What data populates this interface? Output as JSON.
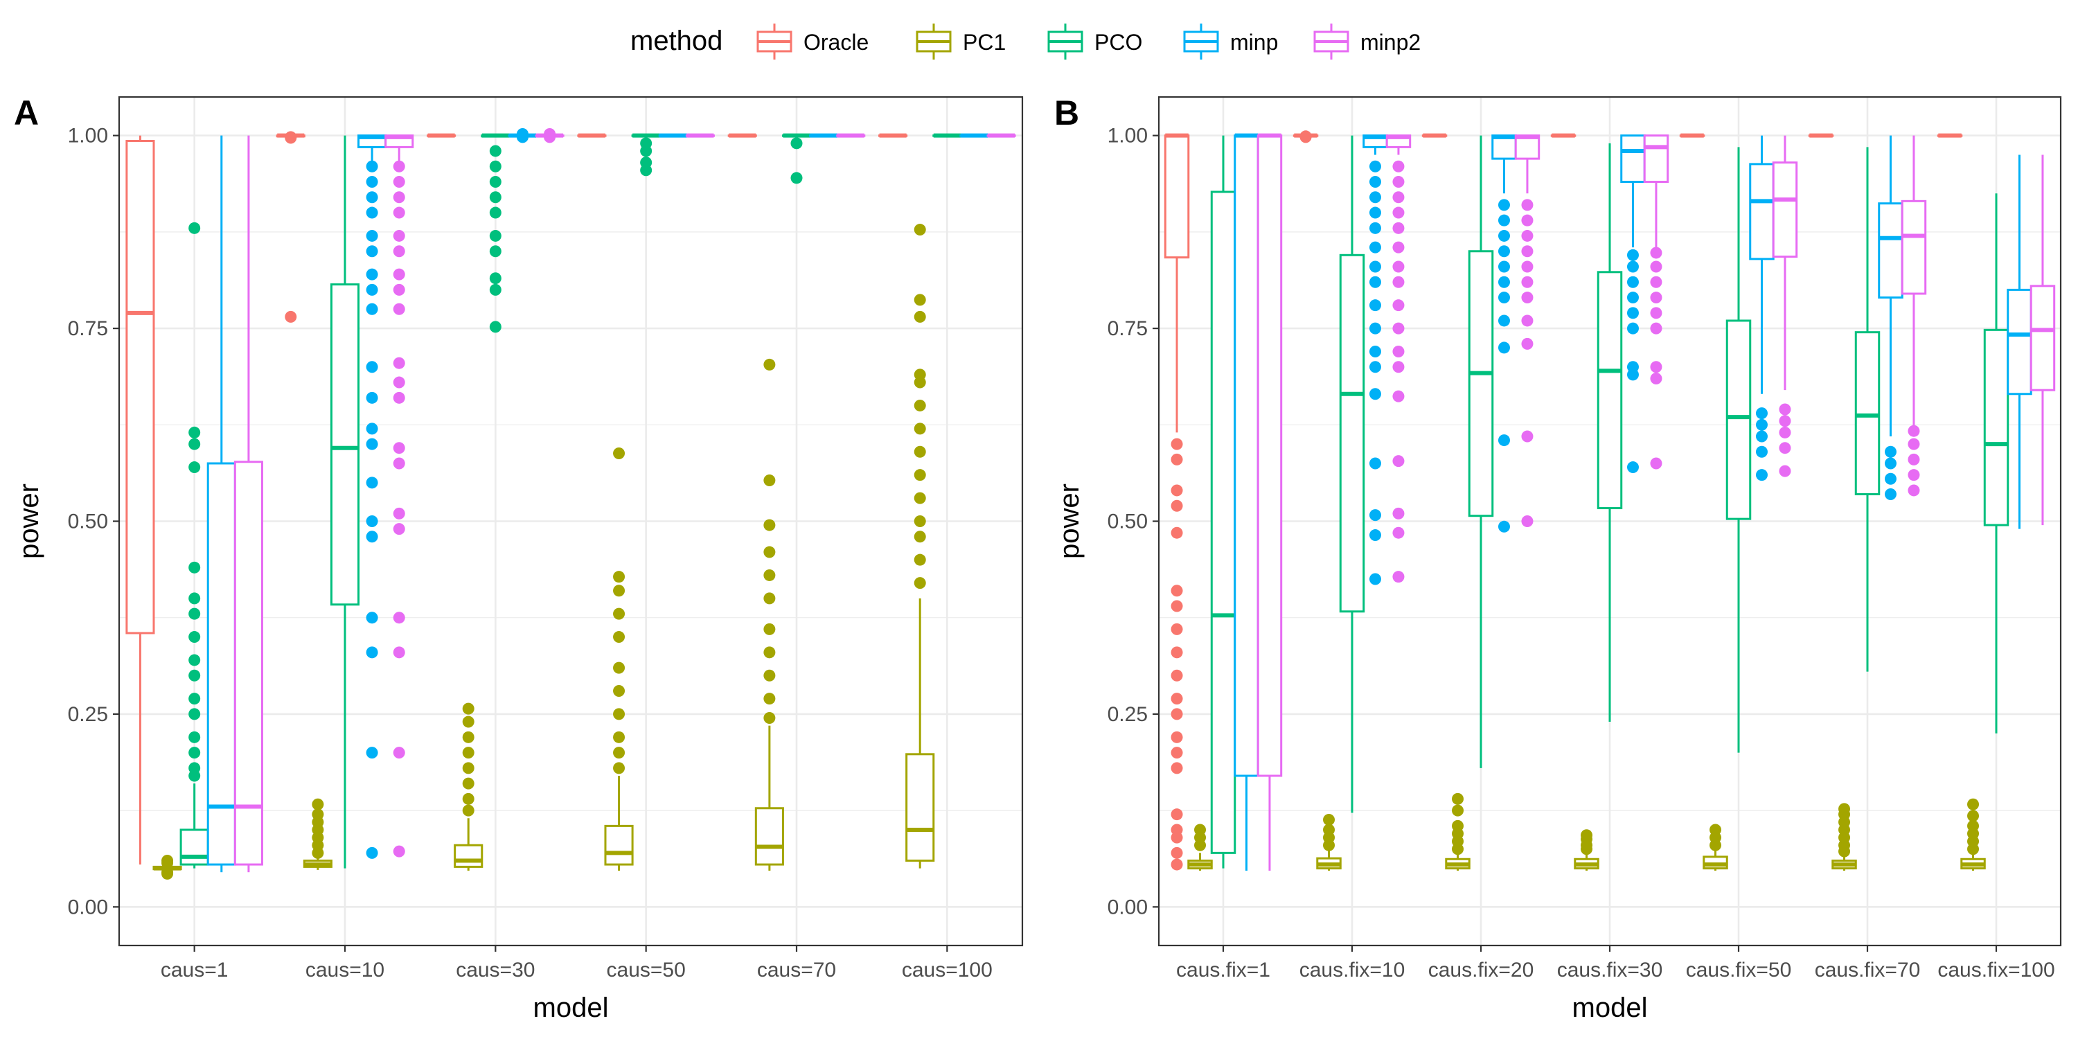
{
  "legend": {
    "title": "method",
    "items": [
      {
        "name": "Oracle",
        "color": "#F8766D"
      },
      {
        "name": "PC1",
        "color": "#A3A500"
      },
      {
        "name": "PCO",
        "color": "#00BF7D"
      },
      {
        "name": "minp",
        "color": "#00B0F6"
      },
      {
        "name": "minp2",
        "color": "#E76BF3"
      }
    ]
  },
  "chart_data": [
    {
      "type": "boxplot",
      "panel": "A",
      "xlabel": "model",
      "ylabel": "power",
      "ylim": [
        -0.05,
        1.05
      ],
      "yticks": [
        "0.00",
        "0.25",
        "0.50",
        "0.75",
        "1.00"
      ],
      "categories": [
        "caus=1",
        "caus=10",
        "caus=30",
        "caus=50",
        "caus=70",
        "caus=100"
      ],
      "methods": [
        "Oracle",
        "PC1",
        "PCO",
        "minp",
        "minp2"
      ],
      "boxes": [
        [
          {
            "q1": 0.355,
            "med": 0.77,
            "q3": 0.993,
            "wlo": 0.055,
            "whi": 1.0,
            "out": []
          },
          {
            "q1": 0.049,
            "med": 0.05,
            "q3": 0.052,
            "wlo": 0.047,
            "whi": 0.055,
            "out": [
              0.043,
              0.045,
              0.057,
              0.06
            ]
          },
          {
            "q1": 0.055,
            "med": 0.065,
            "q3": 0.1,
            "wlo": 0.05,
            "whi": 0.16,
            "out": [
              0.17,
              0.18,
              0.2,
              0.22,
              0.25,
              0.27,
              0.3,
              0.32,
              0.35,
              0.38,
              0.4,
              0.44,
              0.57,
              0.6,
              0.615,
              0.88
            ]
          },
          {
            "q1": 0.055,
            "med": 0.13,
            "q3": 0.575,
            "wlo": 0.045,
            "whi": 1.0,
            "out": []
          },
          {
            "q1": 0.055,
            "med": 0.13,
            "q3": 0.577,
            "wlo": 0.045,
            "whi": 1.0,
            "out": []
          }
        ],
        [
          {
            "q1": 0.999,
            "med": 1.0,
            "q3": 1.0,
            "wlo": 0.998,
            "whi": 1.0,
            "out": [
              0.765,
              0.997,
              0.998
            ]
          },
          {
            "q1": 0.052,
            "med": 0.055,
            "q3": 0.06,
            "wlo": 0.048,
            "whi": 0.065,
            "out": [
              0.07,
              0.08,
              0.09,
              0.1,
              0.11,
              0.12,
              0.133
            ]
          },
          {
            "q1": 0.392,
            "med": 0.595,
            "q3": 0.807,
            "wlo": 0.05,
            "whi": 1.0,
            "out": []
          },
          {
            "q1": 0.985,
            "med": 0.998,
            "q3": 1.0,
            "wlo": 0.965,
            "whi": 1.0,
            "out": [
              0.07,
              0.2,
              0.33,
              0.375,
              0.48,
              0.5,
              0.55,
              0.6,
              0.62,
              0.66,
              0.7,
              0.775,
              0.8,
              0.82,
              0.85,
              0.87,
              0.9,
              0.92,
              0.94,
              0.96
            ]
          },
          {
            "q1": 0.985,
            "med": 0.998,
            "q3": 1.0,
            "wlo": 0.965,
            "whi": 1.0,
            "out": [
              0.072,
              0.2,
              0.33,
              0.375,
              0.49,
              0.51,
              0.575,
              0.595,
              0.66,
              0.68,
              0.705,
              0.775,
              0.8,
              0.82,
              0.85,
              0.87,
              0.9,
              0.92,
              0.94,
              0.96
            ]
          }
        ],
        [
          {
            "q1": 1.0,
            "med": 1.0,
            "q3": 1.0,
            "wlo": 1.0,
            "whi": 1.0,
            "out": []
          },
          {
            "q1": 0.052,
            "med": 0.06,
            "q3": 0.08,
            "wlo": 0.047,
            "whi": 0.115,
            "out": [
              0.125,
              0.14,
              0.16,
              0.18,
              0.2,
              0.22,
              0.24,
              0.257
            ]
          },
          {
            "q1": 0.999,
            "med": 1.0,
            "q3": 1.0,
            "wlo": 0.998,
            "whi": 1.0,
            "out": [
              0.752,
              0.8,
              0.815,
              0.85,
              0.87,
              0.9,
              0.92,
              0.94,
              0.96,
              0.98
            ]
          },
          {
            "q1": 1.0,
            "med": 1.0,
            "q3": 1.0,
            "wlo": 1.0,
            "whi": 1.0,
            "out": [
              0.998,
              1.002
            ]
          },
          {
            "q1": 1.0,
            "med": 1.0,
            "q3": 1.0,
            "wlo": 1.0,
            "whi": 1.0,
            "out": [
              0.998,
              1.002
            ]
          }
        ],
        [
          {
            "q1": 1.0,
            "med": 1.0,
            "q3": 1.0,
            "wlo": 1.0,
            "whi": 1.0,
            "out": []
          },
          {
            "q1": 0.055,
            "med": 0.07,
            "q3": 0.105,
            "wlo": 0.047,
            "whi": 0.17,
            "out": [
              0.18,
              0.2,
              0.22,
              0.25,
              0.28,
              0.31,
              0.35,
              0.38,
              0.41,
              0.428,
              0.588
            ]
          },
          {
            "q1": 1.0,
            "med": 1.0,
            "q3": 1.0,
            "wlo": 0.999,
            "whi": 1.0,
            "out": [
              0.955,
              0.965,
              0.98,
              0.99
            ]
          },
          {
            "q1": 1.0,
            "med": 1.0,
            "q3": 1.0,
            "wlo": 1.0,
            "whi": 1.0,
            "out": []
          },
          {
            "q1": 1.0,
            "med": 1.0,
            "q3": 1.0,
            "wlo": 1.0,
            "whi": 1.0,
            "out": []
          }
        ],
        [
          {
            "q1": 1.0,
            "med": 1.0,
            "q3": 1.0,
            "wlo": 1.0,
            "whi": 1.0,
            "out": []
          },
          {
            "q1": 0.055,
            "med": 0.078,
            "q3": 0.128,
            "wlo": 0.047,
            "whi": 0.235,
            "out": [
              0.245,
              0.27,
              0.3,
              0.33,
              0.36,
              0.4,
              0.43,
              0.46,
              0.495,
              0.553,
              0.703
            ]
          },
          {
            "q1": 1.0,
            "med": 1.0,
            "q3": 1.0,
            "wlo": 0.999,
            "whi": 1.0,
            "out": [
              0.945,
              0.99
            ]
          },
          {
            "q1": 1.0,
            "med": 1.0,
            "q3": 1.0,
            "wlo": 1.0,
            "whi": 1.0,
            "out": []
          },
          {
            "q1": 1.0,
            "med": 1.0,
            "q3": 1.0,
            "wlo": 1.0,
            "whi": 1.0,
            "out": []
          }
        ],
        [
          {
            "q1": 1.0,
            "med": 1.0,
            "q3": 1.0,
            "wlo": 1.0,
            "whi": 1.0,
            "out": []
          },
          {
            "q1": 0.06,
            "med": 0.1,
            "q3": 0.198,
            "wlo": 0.05,
            "whi": 0.4,
            "out": [
              0.42,
              0.45,
              0.48,
              0.5,
              0.53,
              0.56,
              0.59,
              0.62,
              0.65,
              0.68,
              0.69,
              0.765,
              0.787,
              0.878
            ]
          },
          {
            "q1": 1.0,
            "med": 1.0,
            "q3": 1.0,
            "wlo": 1.0,
            "whi": 1.0,
            "out": []
          },
          {
            "q1": 1.0,
            "med": 1.0,
            "q3": 1.0,
            "wlo": 1.0,
            "whi": 1.0,
            "out": []
          },
          {
            "q1": 1.0,
            "med": 1.0,
            "q3": 1.0,
            "wlo": 1.0,
            "whi": 1.0,
            "out": []
          }
        ]
      ]
    },
    {
      "type": "boxplot",
      "panel": "B",
      "xlabel": "model",
      "ylabel": "power",
      "ylim": [
        -0.05,
        1.05
      ],
      "yticks": [
        "0.00",
        "0.25",
        "0.50",
        "0.75",
        "1.00"
      ],
      "categories": [
        "caus.fix=1",
        "caus.fix=10",
        "caus.fix=20",
        "caus.fix=30",
        "caus.fix=50",
        "caus.fix=70",
        "caus.fix=100"
      ],
      "methods": [
        "Oracle",
        "PC1",
        "PCO",
        "minp",
        "minp2"
      ],
      "boxes": [
        [
          {
            "q1": 0.842,
            "med": 1.0,
            "q3": 1.0,
            "wlo": 0.615,
            "whi": 1.0,
            "out": [
              0.055,
              0.07,
              0.09,
              0.1,
              0.12,
              0.18,
              0.2,
              0.22,
              0.25,
              0.27,
              0.3,
              0.33,
              0.36,
              0.39,
              0.41,
              0.485,
              0.52,
              0.54,
              0.58,
              0.6
            ]
          },
          {
            "q1": 0.05,
            "med": 0.055,
            "q3": 0.06,
            "wlo": 0.047,
            "whi": 0.07,
            "out": [
              0.08,
              0.09,
              0.1
            ]
          },
          {
            "q1": 0.07,
            "med": 0.378,
            "q3": 0.927,
            "wlo": 0.05,
            "whi": 1.0,
            "out": []
          },
          {
            "q1": 0.17,
            "med": 1.0,
            "q3": 1.0,
            "wlo": 0.047,
            "whi": 1.0,
            "out": []
          },
          {
            "q1": 0.17,
            "med": 1.0,
            "q3": 1.0,
            "wlo": 0.047,
            "whi": 1.0,
            "out": []
          }
        ],
        [
          {
            "q1": 1.0,
            "med": 1.0,
            "q3": 1.0,
            "wlo": 1.0,
            "whi": 1.0,
            "out": [
              0.998,
              0.999
            ]
          },
          {
            "q1": 0.05,
            "med": 0.055,
            "q3": 0.063,
            "wlo": 0.047,
            "whi": 0.075,
            "out": [
              0.08,
              0.09,
              0.1,
              0.113
            ]
          },
          {
            "q1": 0.383,
            "med": 0.665,
            "q3": 0.845,
            "wlo": 0.122,
            "whi": 1.0,
            "out": []
          },
          {
            "q1": 0.985,
            "med": 0.998,
            "q3": 1.0,
            "wlo": 0.975,
            "whi": 1.0,
            "out": [
              0.425,
              0.482,
              0.508,
              0.575,
              0.665,
              0.7,
              0.72,
              0.75,
              0.78,
              0.81,
              0.83,
              0.855,
              0.88,
              0.9,
              0.92,
              0.94,
              0.96
            ]
          },
          {
            "q1": 0.985,
            "med": 0.998,
            "q3": 1.0,
            "wlo": 0.975,
            "whi": 1.0,
            "out": [
              0.428,
              0.485,
              0.51,
              0.578,
              0.662,
              0.7,
              0.72,
              0.75,
              0.78,
              0.81,
              0.83,
              0.855,
              0.88,
              0.9,
              0.92,
              0.94,
              0.96
            ]
          }
        ],
        [
          {
            "q1": 1.0,
            "med": 1.0,
            "q3": 1.0,
            "wlo": 1.0,
            "whi": 1.0,
            "out": []
          },
          {
            "q1": 0.05,
            "med": 0.055,
            "q3": 0.062,
            "wlo": 0.047,
            "whi": 0.07,
            "out": [
              0.075,
              0.085,
              0.095,
              0.105,
              0.125,
              0.14
            ]
          },
          {
            "q1": 0.507,
            "med": 0.692,
            "q3": 0.85,
            "wlo": 0.18,
            "whi": 1.0,
            "out": []
          },
          {
            "q1": 0.97,
            "med": 0.998,
            "q3": 1.0,
            "wlo": 0.925,
            "whi": 1.0,
            "out": [
              0.493,
              0.605,
              0.725,
              0.76,
              0.79,
              0.81,
              0.83,
              0.85,
              0.87,
              0.89,
              0.91
            ]
          },
          {
            "q1": 0.97,
            "med": 0.998,
            "q3": 1.0,
            "wlo": 0.925,
            "whi": 1.0,
            "out": [
              0.5,
              0.61,
              0.73,
              0.76,
              0.79,
              0.81,
              0.83,
              0.85,
              0.87,
              0.89,
              0.91
            ]
          }
        ],
        [
          {
            "q1": 1.0,
            "med": 1.0,
            "q3": 1.0,
            "wlo": 1.0,
            "whi": 1.0,
            "out": []
          },
          {
            "q1": 0.05,
            "med": 0.055,
            "q3": 0.062,
            "wlo": 0.047,
            "whi": 0.07,
            "out": [
              0.075,
              0.08,
              0.088,
              0.093
            ]
          },
          {
            "q1": 0.517,
            "med": 0.695,
            "q3": 0.823,
            "wlo": 0.24,
            "whi": 0.99,
            "out": []
          },
          {
            "q1": 0.94,
            "med": 0.98,
            "q3": 1.0,
            "wlo": 0.855,
            "whi": 1.0,
            "out": [
              0.57,
              0.69,
              0.7,
              0.75,
              0.77,
              0.79,
              0.81,
              0.83,
              0.845
            ]
          },
          {
            "q1": 0.94,
            "med": 0.985,
            "q3": 1.0,
            "wlo": 0.855,
            "whi": 1.0,
            "out": [
              0.575,
              0.685,
              0.7,
              0.75,
              0.77,
              0.79,
              0.81,
              0.83,
              0.848
            ]
          }
        ],
        [
          {
            "q1": 1.0,
            "med": 1.0,
            "q3": 1.0,
            "wlo": 1.0,
            "whi": 1.0,
            "out": []
          },
          {
            "q1": 0.05,
            "med": 0.055,
            "q3": 0.065,
            "wlo": 0.047,
            "whi": 0.075,
            "out": [
              0.08,
              0.09,
              0.1
            ]
          },
          {
            "q1": 0.503,
            "med": 0.635,
            "q3": 0.76,
            "wlo": 0.2,
            "whi": 0.985,
            "out": []
          },
          {
            "q1": 0.84,
            "med": 0.915,
            "q3": 0.963,
            "wlo": 0.665,
            "whi": 1.0,
            "out": [
              0.56,
              0.59,
              0.61,
              0.625,
              0.64
            ]
          },
          {
            "q1": 0.843,
            "med": 0.917,
            "q3": 0.965,
            "wlo": 0.67,
            "whi": 1.0,
            "out": [
              0.565,
              0.595,
              0.615,
              0.63,
              0.645
            ]
          }
        ],
        [
          {
            "q1": 1.0,
            "med": 1.0,
            "q3": 1.0,
            "wlo": 1.0,
            "whi": 1.0,
            "out": []
          },
          {
            "q1": 0.05,
            "med": 0.055,
            "q3": 0.06,
            "wlo": 0.047,
            "whi": 0.068,
            "out": [
              0.072,
              0.08,
              0.09,
              0.1,
              0.11,
              0.12,
              0.127
            ]
          },
          {
            "q1": 0.535,
            "med": 0.637,
            "q3": 0.745,
            "wlo": 0.305,
            "whi": 0.985,
            "out": []
          },
          {
            "q1": 0.79,
            "med": 0.867,
            "q3": 0.912,
            "wlo": 0.61,
            "whi": 1.0,
            "out": [
              0.535,
              0.555,
              0.575,
              0.59
            ]
          },
          {
            "q1": 0.795,
            "med": 0.87,
            "q3": 0.915,
            "wlo": 0.62,
            "whi": 1.0,
            "out": [
              0.54,
              0.56,
              0.58,
              0.6,
              0.617
            ]
          }
        ],
        [
          {
            "q1": 1.0,
            "med": 1.0,
            "q3": 1.0,
            "wlo": 1.0,
            "whi": 1.0,
            "out": []
          },
          {
            "q1": 0.05,
            "med": 0.055,
            "q3": 0.062,
            "wlo": 0.047,
            "whi": 0.07,
            "out": [
              0.075,
              0.085,
              0.095,
              0.105,
              0.118,
              0.133
            ]
          },
          {
            "q1": 0.495,
            "med": 0.6,
            "q3": 0.748,
            "wlo": 0.225,
            "whi": 0.925,
            "out": []
          },
          {
            "q1": 0.665,
            "med": 0.742,
            "q3": 0.8,
            "wlo": 0.49,
            "whi": 0.975,
            "out": []
          },
          {
            "q1": 0.67,
            "med": 0.748,
            "q3": 0.805,
            "wlo": 0.495,
            "whi": 0.975,
            "out": []
          }
        ]
      ]
    }
  ]
}
